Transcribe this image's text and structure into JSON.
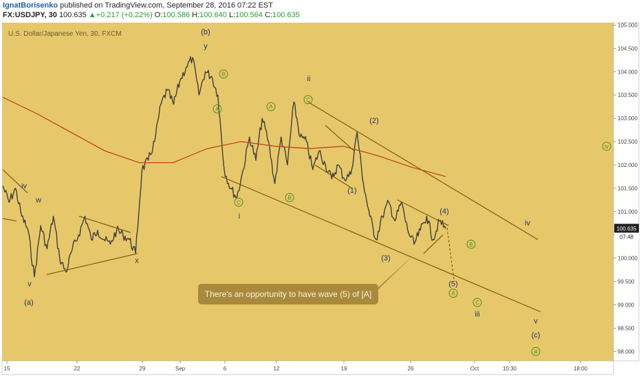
{
  "header": {
    "author": "IgnatBorisenko",
    "published_text": "published on TradingView.com, September 28, 2016 07:22 EST",
    "symbol": "FX:USDJPY, 30",
    "last": "100.635",
    "change": "+0.217 (+0.22%)",
    "o_label": "O:",
    "o_val": "100.586",
    "h_label": "H:",
    "h_val": "100.640",
    "l_label": "L:",
    "l_val": "100.564",
    "c_label": "C:",
    "c_val": "100.635"
  },
  "chart_title": "U.S. Dollar/Japanese Yen, 30, FXCM",
  "callout_text": "There's an opportunity to have wave (5) of [A]",
  "price_badge": "100.635",
  "time_badge": "07:48",
  "colors": {
    "background": "#e6c86a",
    "candle": "#3d3d3d",
    "ma": "#c0451c",
    "trendline": "#7a5a14",
    "wave_green": "#4f8a26",
    "wave_navy": "#1e3560",
    "callout": "#a98a3c",
    "badge": "#222222"
  },
  "chart_data": {
    "type": "line",
    "title": "U.S. Dollar/Japanese Yen, 30, FXCM",
    "ylim": [
      97.8,
      105.05
    ],
    "y_ticks": [
      98.0,
      98.5,
      99.0,
      99.5,
      100.0,
      100.5,
      101.0,
      101.5,
      102.0,
      102.5,
      103.0,
      103.5,
      104.0,
      104.5,
      105.0
    ],
    "x_ticks": [
      "15",
      "22",
      "29",
      "Sep",
      "6",
      "12",
      "19",
      "26",
      "Oct",
      "10:30",
      "18:00"
    ],
    "last_price": 100.635,
    "series": [
      {
        "values": [
          {
            "t": "15",
            "p": 101.55
          },
          {
            "t": "15",
            "p": 101.2
          },
          {
            "t": "15",
            "p": 101.5
          },
          {
            "t": "15",
            "p": 100.9
          },
          {
            "t": "15",
            "p": 100.6
          },
          {
            "t": "15",
            "p": 99.6
          },
          {
            "t": "16",
            "p": 100.7
          },
          {
            "t": "17",
            "p": 100.2
          },
          {
            "t": "18",
            "p": 100.9
          },
          {
            "t": "18",
            "p": 100.0
          },
          {
            "t": "19",
            "p": 99.7
          },
          {
            "t": "20",
            "p": 100.2
          },
          {
            "t": "21",
            "p": 100.5
          },
          {
            "t": "22",
            "p": 100.9
          },
          {
            "t": "22",
            "p": 100.4
          },
          {
            "t": "23",
            "p": 100.6
          },
          {
            "t": "24",
            "p": 100.4
          },
          {
            "t": "25",
            "p": 100.3
          },
          {
            "t": "26",
            "p": 100.6
          },
          {
            "t": "27",
            "p": 100.5
          },
          {
            "t": "28",
            "p": 100.4
          },
          {
            "t": "29",
            "p": 100.1
          },
          {
            "t": "29",
            "p": 101.9
          },
          {
            "t": "30",
            "p": 102.1
          },
          {
            "t": "31",
            "p": 102.5
          },
          {
            "t": "31",
            "p": 103.3
          },
          {
            "t": "Sep",
            "p": 103.6
          },
          {
            "t": "Sep",
            "p": 103.3
          },
          {
            "t": "2",
            "p": 103.8
          },
          {
            "t": "2",
            "p": 104.1
          },
          {
            "t": "3",
            "p": 104.3
          },
          {
            "t": "3",
            "p": 103.5
          },
          {
            "t": "5",
            "p": 104.0
          },
          {
            "t": "5",
            "p": 103.9
          },
          {
            "t": "6",
            "p": 103.5
          },
          {
            "t": "6",
            "p": 101.9
          },
          {
            "t": "7",
            "p": 101.5
          },
          {
            "t": "7",
            "p": 101.3
          },
          {
            "t": "8",
            "p": 101.9
          },
          {
            "t": "9",
            "p": 102.6
          },
          {
            "t": "10",
            "p": 102.1
          },
          {
            "t": "11",
            "p": 103.0
          },
          {
            "t": "12",
            "p": 102.5
          },
          {
            "t": "12",
            "p": 101.6
          },
          {
            "t": "13",
            "p": 102.6
          },
          {
            "t": "14",
            "p": 102.0
          },
          {
            "t": "14",
            "p": 103.35
          },
          {
            "t": "15",
            "p": 102.6
          },
          {
            "t": "16",
            "p": 102.5
          },
          {
            "t": "16",
            "p": 101.9
          },
          {
            "t": "17",
            "p": 102.3
          },
          {
            "t": "18",
            "p": 102.0
          },
          {
            "t": "19",
            "p": 101.7
          },
          {
            "t": "19",
            "p": 102.0
          },
          {
            "t": "20",
            "p": 101.7
          },
          {
            "t": "21",
            "p": 101.8
          },
          {
            "t": "21",
            "p": 102.7
          },
          {
            "t": "21",
            "p": 101.6
          },
          {
            "t": "22",
            "p": 100.9
          },
          {
            "t": "22",
            "p": 100.4
          },
          {
            "t": "23",
            "p": 100.9
          },
          {
            "t": "24",
            "p": 101.2
          },
          {
            "t": "24",
            "p": 100.8
          },
          {
            "t": "25",
            "p": 101.2
          },
          {
            "t": "26",
            "p": 100.6
          },
          {
            "t": "26",
            "p": 100.3
          },
          {
            "t": "27",
            "p": 100.6
          },
          {
            "t": "27",
            "p": 100.9
          },
          {
            "t": "27",
            "p": 100.4
          },
          {
            "t": "28",
            "p": 100.8
          },
          {
            "t": "28",
            "p": 100.635
          }
        ]
      },
      {
        "values": [
          103.45,
          103.1,
          102.7,
          102.3,
          102.05,
          102.05,
          102.35,
          102.5,
          102.4,
          102.35,
          102.4,
          102.2,
          101.95,
          101.75
        ]
      }
    ],
    "labels_navy": [
      {
        "text": "(b)",
        "p": 104.8
      },
      {
        "text": "y",
        "p": 104.5
      },
      {
        "text": "iv",
        "p": 101.5
      },
      {
        "text": "w",
        "p": 101.2
      },
      {
        "text": "v",
        "p": 99.4
      },
      {
        "text": "(a)",
        "p": 99.0
      },
      {
        "text": "x",
        "p": 99.9
      },
      {
        "text": "ii",
        "p": 103.8
      },
      {
        "text": "i",
        "p": 100.85
      },
      {
        "text": "(2)",
        "p": 102.9
      },
      {
        "text": "(1)",
        "p": 101.4
      },
      {
        "text": "(4)",
        "p": 100.95
      },
      {
        "text": "(3)",
        "p": 99.95
      },
      {
        "text": "(5)",
        "p": 99.4
      },
      {
        "text": "iv",
        "p": 100.7
      },
      {
        "text": "iii",
        "p": 98.75
      },
      {
        "text": "v",
        "p": 98.6
      },
      {
        "text": "(c)",
        "p": 98.3
      }
    ],
    "labels_green": [
      {
        "text": "B",
        "p": 103.95
      },
      {
        "text": "A",
        "p": 103.2
      },
      {
        "text": "C",
        "p": 103.4
      },
      {
        "text": "A",
        "p": 103.25
      },
      {
        "text": "B",
        "p": 101.3
      },
      {
        "text": "C",
        "p": 101.2
      },
      {
        "text": "B",
        "p": 100.3
      },
      {
        "text": "A",
        "p": 99.25
      },
      {
        "text": "C",
        "p": 99.05
      },
      {
        "text": "iv",
        "p": 102.4
      },
      {
        "text": "iii",
        "p": 98.0
      }
    ]
  }
}
